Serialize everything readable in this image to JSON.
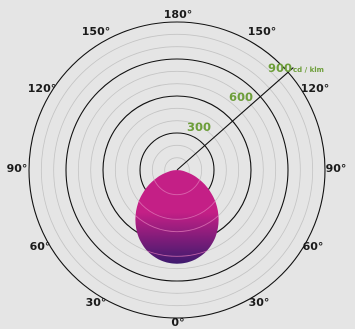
{
  "chart_data": {
    "type": "polar",
    "angle_labels": [
      "180°",
      "150°",
      "150°",
      "120°",
      "120°",
      "90°",
      "90°",
      "60°",
      "60°",
      "30°",
      "30°",
      "0°"
    ],
    "radial_labels": [
      "300",
      "600",
      "900"
    ],
    "radial_unit": "cd / klm",
    "r_max": 1200,
    "series": [
      {
        "profile": [
          {
            "angle": 0,
            "value": 760
          },
          {
            "angle": 10,
            "value": 745
          },
          {
            "angle": 20,
            "value": 700
          },
          {
            "angle": 30,
            "value": 625
          },
          {
            "angle": 40,
            "value": 525
          },
          {
            "angle": 50,
            "value": 410
          },
          {
            "angle": 60,
            "value": 285
          },
          {
            "angle": 70,
            "value": 165
          },
          {
            "angle": 80,
            "value": 60
          },
          {
            "angle": 90,
            "value": 0
          }
        ]
      }
    ],
    "grid": true
  },
  "colors": {
    "background": "#e5e5e5",
    "major_ring": "#111111",
    "minor_ring": "#c4c4c4",
    "label_accent": "#6d9e3a",
    "fill_top": "#c41f86",
    "fill_bottom": "#3d1a6e",
    "contour": "#e07ab8"
  }
}
